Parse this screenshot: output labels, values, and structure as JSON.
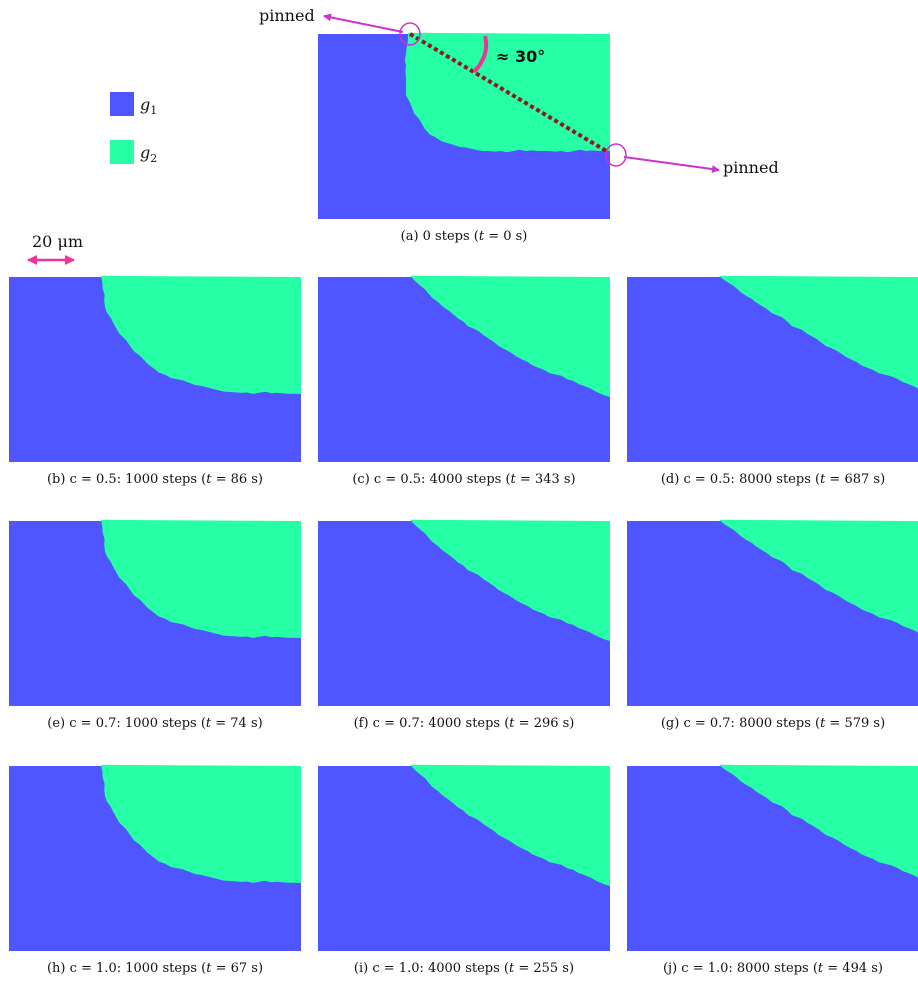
{
  "colors": {
    "g1": "#4f55ff",
    "g2": "#27ffa6",
    "accent": "#ee3399",
    "line": "#8b1a1a"
  },
  "legend": [
    {
      "symbol": "g",
      "sub": "1",
      "color": "#4f55ff"
    },
    {
      "symbol": "g",
      "sub": "2",
      "color": "#27ffa6"
    }
  ],
  "scale_bar": {
    "label": "20 μm"
  },
  "annotations": {
    "pinned_left": "pinned",
    "pinned_right": "pinned",
    "angle": "≈ 30°"
  },
  "panels": [
    {
      "id": "a",
      "caption": "(a) 0 steps (𝑡 = 0 s)",
      "shape": "initial"
    },
    {
      "id": "b",
      "caption": "(b) c = 0.5:  1000 steps (𝑡 = 86 s)",
      "shape": "early"
    },
    {
      "id": "c",
      "caption": "(c) c = 0.5:  4000 steps (𝑡 = 343 s)",
      "shape": "mid"
    },
    {
      "id": "d",
      "caption": "(d) c = 0.5:  8000 steps (𝑡 = 687 s)",
      "shape": "late"
    },
    {
      "id": "e",
      "caption": "(e) c = 0.7:  1000 steps (𝑡 = 74 s)",
      "shape": "early"
    },
    {
      "id": "f",
      "caption": "(f) c = 0.7:  4000 steps (𝑡 = 296 s)",
      "shape": "mid"
    },
    {
      "id": "g",
      "caption": "(g) c = 0.7:  8000 steps (𝑡 = 579 s)",
      "shape": "late"
    },
    {
      "id": "h",
      "caption": "(h) c = 1.0:  1000 steps (𝑡 = 67 s)",
      "shape": "early"
    },
    {
      "id": "i",
      "caption": "(i) c = 1.0:  4000 steps (𝑡 = 255 s)",
      "shape": "mid"
    },
    {
      "id": "j",
      "caption": "(j) c = 1.0:  8000 steps (𝑡 = 494 s)",
      "shape": "late"
    }
  ]
}
